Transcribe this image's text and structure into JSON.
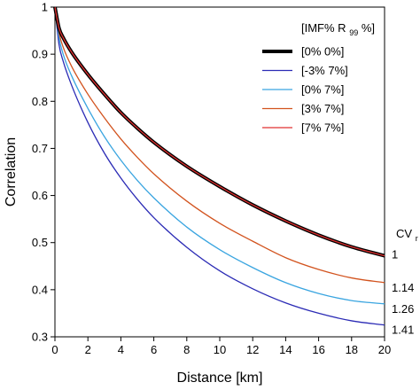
{
  "chart_data": {
    "type": "line",
    "xlabel": "Distance [km]",
    "ylabel": "Correlation",
    "xlim": [
      0,
      20
    ],
    "ylim": [
      0.3,
      1
    ],
    "xticks": [
      "0",
      "2",
      "4",
      "6",
      "8",
      "10",
      "12",
      "14",
      "16",
      "18",
      "20"
    ],
    "yticks": [
      "0.3",
      "0.4",
      "0.5",
      "0.6",
      "0.7",
      "0.8",
      "0.9",
      "1"
    ],
    "grid": false,
    "legend": {
      "placement": "top-right",
      "title_main": "[IMF% R",
      "title_sub": "99",
      "title_tail": "%]"
    },
    "series": [
      {
        "name": "[0% 0%]",
        "color": "#000000",
        "width": 4,
        "x": [
          0,
          0.25,
          0.5,
          1,
          2,
          3,
          4,
          5,
          6,
          8,
          10,
          12,
          14,
          16,
          18,
          20
        ],
        "y": [
          1.0,
          0.955,
          0.935,
          0.905,
          0.857,
          0.815,
          0.776,
          0.743,
          0.713,
          0.662,
          0.619,
          0.58,
          0.546,
          0.516,
          0.491,
          0.472
        ]
      },
      {
        "name": "[-3% 7%]",
        "color": "#2b2bb5",
        "width": 1.3,
        "x": [
          0,
          0.25,
          0.5,
          1,
          2,
          3,
          4,
          5,
          6,
          8,
          10,
          12,
          14,
          16,
          18,
          20
        ],
        "y": [
          1.0,
          0.92,
          0.885,
          0.835,
          0.755,
          0.69,
          0.637,
          0.592,
          0.553,
          0.49,
          0.44,
          0.402,
          0.372,
          0.35,
          0.334,
          0.325
        ]
      },
      {
        "name": "[0% 7%]",
        "color": "#3aa5e0",
        "width": 1.3,
        "x": [
          0,
          0.25,
          0.5,
          1,
          2,
          3,
          4,
          5,
          6,
          8,
          10,
          12,
          14,
          16,
          18,
          20
        ],
        "y": [
          1.0,
          0.935,
          0.9,
          0.855,
          0.785,
          0.725,
          0.675,
          0.632,
          0.595,
          0.533,
          0.485,
          0.447,
          0.415,
          0.392,
          0.377,
          0.37
        ]
      },
      {
        "name": "[3% 7%]",
        "color": "#d2531e",
        "width": 1.3,
        "x": [
          0,
          0.25,
          0.5,
          1,
          2,
          3,
          4,
          5,
          6,
          8,
          10,
          12,
          14,
          16,
          18,
          20
        ],
        "y": [
          1.0,
          0.945,
          0.915,
          0.875,
          0.815,
          0.765,
          0.72,
          0.681,
          0.646,
          0.588,
          0.541,
          0.503,
          0.468,
          0.443,
          0.425,
          0.415
        ]
      },
      {
        "name": "[7% 7%]",
        "color": "#e03030",
        "width": 1.3,
        "x": [
          0,
          0.25,
          0.5,
          1,
          2,
          3,
          4,
          5,
          6,
          8,
          10,
          12,
          14,
          16,
          18,
          20
        ],
        "y": [
          1.0,
          0.955,
          0.935,
          0.905,
          0.857,
          0.815,
          0.776,
          0.743,
          0.713,
          0.662,
          0.619,
          0.58,
          0.546,
          0.516,
          0.491,
          0.472
        ]
      }
    ],
    "cv": {
      "title": "CV",
      "title_sub": "r",
      "labels": [
        {
          "text": "1",
          "y": 0.472
        },
        {
          "text": "1.14",
          "y": 0.415
        },
        {
          "text": "1.26",
          "y": 0.37
        },
        {
          "text": "1.41",
          "y": 0.325
        }
      ]
    }
  }
}
